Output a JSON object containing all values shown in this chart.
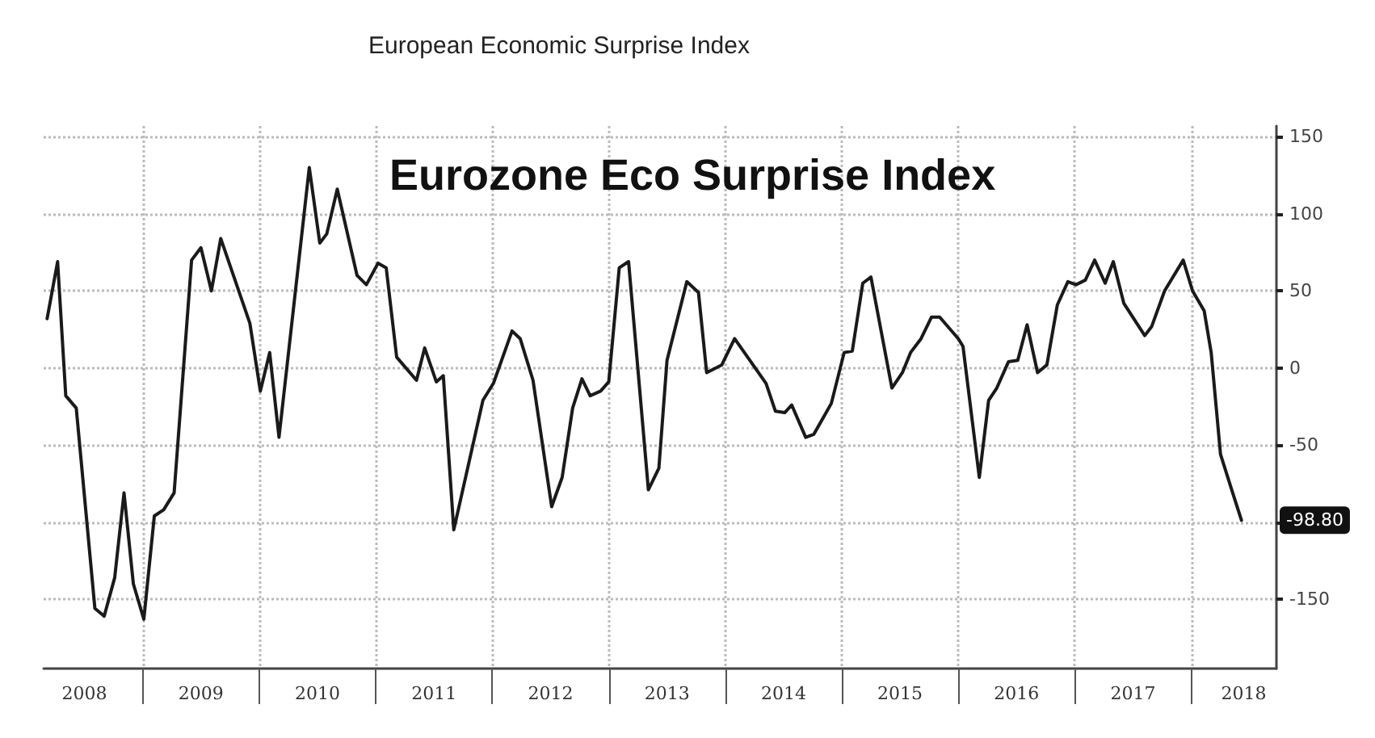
{
  "chart_data": {
    "type": "line",
    "title": "European Economic Surprise Index",
    "subtitle": "Eurozone Eco Surprise Index",
    "x": [
      2008.18,
      2008.27,
      2008.34,
      2008.43,
      2008.59,
      2008.67,
      2008.76,
      2008.84,
      2008.92,
      2009.01,
      2009.1,
      2009.18,
      2009.27,
      2009.42,
      2009.5,
      2009.59,
      2009.67,
      2009.92,
      2010.01,
      2010.09,
      2010.17,
      2010.43,
      2010.52,
      2010.58,
      2010.67,
      2010.84,
      2010.92,
      2011.02,
      2011.09,
      2011.18,
      2011.35,
      2011.42,
      2011.52,
      2011.58,
      2011.67,
      2011.92,
      2012.01,
      2012.17,
      2012.24,
      2012.35,
      2012.51,
      2012.6,
      2012.69,
      2012.77,
      2012.84,
      2012.93,
      2013.0,
      2013.09,
      2013.17,
      2013.34,
      2013.43,
      2013.5,
      2013.67,
      2013.77,
      2013.84,
      2013.97,
      2014.08,
      2014.35,
      2014.43,
      2014.51,
      2014.57,
      2014.69,
      2014.76,
      2014.91,
      2015.02,
      2015.09,
      2015.18,
      2015.25,
      2015.43,
      2015.52,
      2015.59,
      2015.68,
      2015.77,
      2015.84,
      2016.0,
      2016.04,
      2016.18,
      2016.26,
      2016.33,
      2016.43,
      2016.51,
      2016.59,
      2016.68,
      2016.76,
      2016.85,
      2016.94,
      2017.01,
      2017.09,
      2017.17,
      2017.26,
      2017.33,
      2017.42,
      2017.6,
      2017.66,
      2017.77,
      2017.93,
      2018.01,
      2018.11,
      2018.17,
      2018.25,
      2018.35,
      2018.43
    ],
    "series": [
      {
        "color": "#1a1a1a",
        "values": [
          32,
          69,
          -18,
          -26,
          -156,
          -161,
          -136,
          -81,
          -140,
          -163,
          -96,
          -92,
          -81,
          70,
          78,
          50,
          84,
          29,
          -15,
          10,
          -45,
          130,
          81,
          87,
          116,
          60,
          54,
          68,
          65,
          7,
          -8,
          13,
          -9,
          -5,
          -105,
          -21,
          -10,
          24,
          19,
          -8,
          -90,
          -71,
          -26,
          -7,
          -18,
          -15,
          -9,
          65,
          69,
          -79,
          -65,
          5,
          56,
          49,
          -3,
          2,
          19,
          -10,
          -28,
          -29,
          -24,
          -45,
          -43,
          -23,
          10,
          11,
          55,
          59,
          -13,
          -3,
          10,
          19,
          33,
          33,
          19,
          14,
          -71,
          -21,
          -13,
          4,
          5,
          28,
          -3,
          2,
          41,
          56,
          54,
          57,
          70,
          55,
          69,
          42,
          21,
          27,
          50,
          70,
          50,
          37,
          10,
          -56,
          -80,
          -98.8
        ]
      }
    ],
    "xlim": [
      2008.15,
      2018.73
    ],
    "xticks": [
      {
        "value": 2008.5,
        "label": "2008"
      },
      {
        "value": 2009,
        "label": null
      },
      {
        "value": 2009.5,
        "label": "2009"
      },
      {
        "value": 2010,
        "label": null
      },
      {
        "value": 2010.5,
        "label": "2010"
      },
      {
        "value": 2011,
        "label": null
      },
      {
        "value": 2011.5,
        "label": "2011"
      },
      {
        "value": 2012,
        "label": null
      },
      {
        "value": 2012.5,
        "label": "2012"
      },
      {
        "value": 2013,
        "label": null
      },
      {
        "value": 2013.5,
        "label": "2013"
      },
      {
        "value": 2014,
        "label": null
      },
      {
        "value": 2014.5,
        "label": "2014"
      },
      {
        "value": 2015,
        "label": null
      },
      {
        "value": 2015.5,
        "label": "2015"
      },
      {
        "value": 2016,
        "label": null
      },
      {
        "value": 2016.5,
        "label": "2016"
      },
      {
        "value": 2017,
        "label": null
      },
      {
        "value": 2017.5,
        "label": "2017"
      },
      {
        "value": 2018,
        "label": null
      },
      {
        "value": 2018.45,
        "label": "2018"
      }
    ],
    "ylim": [
      -195,
      157
    ],
    "yticks": [
      -150,
      {
        "value": -100,
        "label": null
      },
      -50,
      0,
      50,
      100,
      150
    ],
    "annotations": [
      "-98.80"
    ],
    "grid": true,
    "marker": "none",
    "line_style": "solid"
  }
}
